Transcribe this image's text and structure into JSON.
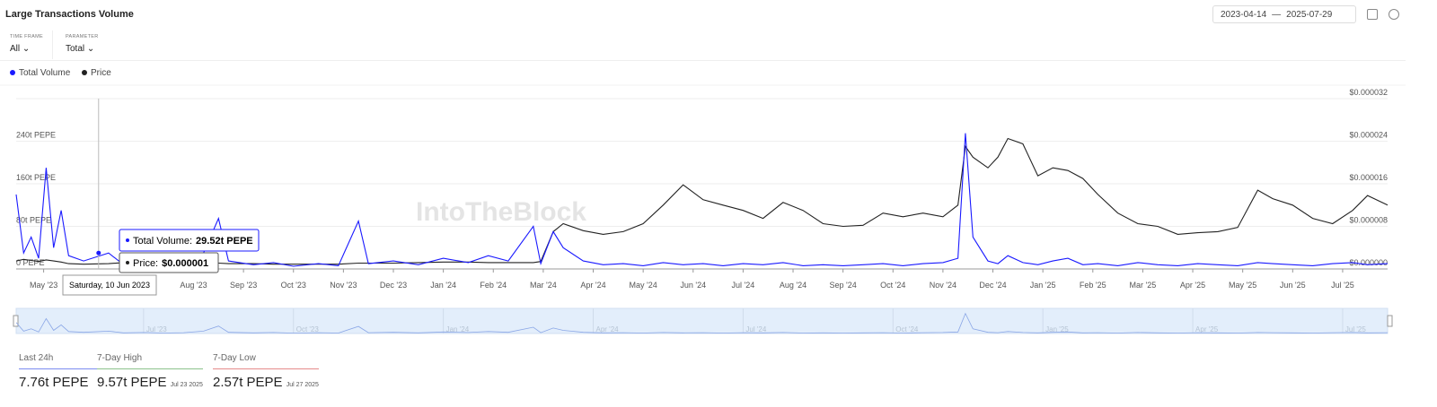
{
  "header": {
    "title": "Large Transactions Volume",
    "date_from": "2023-04-14",
    "date_sep": "—",
    "date_to": "2025-07-29"
  },
  "filters": [
    {
      "label": "TIME FRAME",
      "value": "All"
    },
    {
      "label": "PARAMETER",
      "value": "Total"
    }
  ],
  "watermark": "IntoTheBlock",
  "chart_data": {
    "type": "line",
    "x": [
      -0.55,
      -0.4,
      -0.25,
      -0.1,
      0.05,
      0.2,
      0.35,
      0.5,
      0.8,
      1.3,
      1.6,
      2.0,
      2.4,
      2.8,
      3.2,
      3.5,
      3.7,
      4.2,
      4.6,
      5.0,
      5.5,
      5.9,
      6.3,
      6.5,
      7.0,
      7.5,
      8.0,
      8.5,
      8.9,
      9.3,
      9.8,
      9.95,
      10.2,
      10.4,
      10.8,
      11.2,
      11.6,
      12.0,
      12.4,
      12.8,
      13.2,
      13.6,
      14.0,
      14.4,
      14.8,
      15.2,
      15.6,
      16.0,
      16.4,
      16.8,
      17.2,
      17.6,
      18.0,
      18.3,
      18.45,
      18.6,
      18.9,
      19.1,
      19.3,
      19.6,
      19.9,
      20.2,
      20.5,
      20.8,
      21.1,
      21.5,
      21.9,
      22.3,
      22.7,
      23.1,
      23.5,
      23.9,
      24.3,
      24.6,
      25.0,
      25.4,
      25.8,
      26.2,
      26.5,
      26.9
    ],
    "xlim": [
      -0.55,
      26.9
    ],
    "xticks": [
      {
        "value": 0,
        "label": "May '23"
      },
      {
        "value": 3,
        "label": "Aug '23"
      },
      {
        "value": 4,
        "label": "Sep '23"
      },
      {
        "value": 5,
        "label": "Oct '23"
      },
      {
        "value": 6,
        "label": "Nov '23"
      },
      {
        "value": 7,
        "label": "Dec '23"
      },
      {
        "value": 8,
        "label": "Jan '24"
      },
      {
        "value": 9,
        "label": "Feb '24"
      },
      {
        "value": 10,
        "label": "Mar '24"
      },
      {
        "value": 11,
        "label": "Apr '24"
      },
      {
        "value": 12,
        "label": "May '24"
      },
      {
        "value": 13,
        "label": "Jun '24"
      },
      {
        "value": 14,
        "label": "Jul '24"
      },
      {
        "value": 15,
        "label": "Aug '24"
      },
      {
        "value": 16,
        "label": "Sep '24"
      },
      {
        "value": 17,
        "label": "Oct '24"
      },
      {
        "value": 18,
        "label": "Nov '24"
      },
      {
        "value": 19,
        "label": "Dec '24"
      },
      {
        "value": 20,
        "label": "Jan '25"
      },
      {
        "value": 21,
        "label": "Feb '25"
      },
      {
        "value": 22,
        "label": "Mar '25"
      },
      {
        "value": 23,
        "label": "Apr '25"
      },
      {
        "value": 24,
        "label": "May '25"
      },
      {
        "value": 25,
        "label": "Jun '25"
      },
      {
        "value": 26,
        "label": "Jul '25"
      }
    ],
    "ylim": [
      0,
      320
    ],
    "yticks": [
      {
        "value": 0,
        "label": "0 PEPE"
      },
      {
        "value": 80,
        "label": "80t PEPE"
      },
      {
        "value": 160,
        "label": "160t PEPE"
      },
      {
        "value": 240,
        "label": "240t PEPE"
      }
    ],
    "y2lim": [
      0,
      3.2e-05
    ],
    "y2ticks": [
      {
        "value": 0,
        "label": "$0.000000"
      },
      {
        "value": 8e-06,
        "label": "$0.000008"
      },
      {
        "value": 1.6e-05,
        "label": "$0.000016"
      },
      {
        "value": 2.4e-05,
        "label": "$0.000024"
      },
      {
        "value": 3.2e-05,
        "label": "$0.000032"
      }
    ],
    "navigator_ticks": [
      {
        "value": 2,
        "label": "Jul '23"
      },
      {
        "value": 5,
        "label": "Oct '23"
      },
      {
        "value": 8,
        "label": "Jan '24"
      },
      {
        "value": 11,
        "label": "Apr '24"
      },
      {
        "value": 14,
        "label": "Jul '24"
      },
      {
        "value": 17,
        "label": "Oct '24"
      },
      {
        "value": 20,
        "label": "Jan '25"
      },
      {
        "value": 23,
        "label": "Apr '25"
      },
      {
        "value": 26,
        "label": "Jul '25"
      }
    ],
    "grid": true,
    "series": [
      {
        "name": "Total Volume",
        "color": "#1a1aff",
        "values": [
          140,
          30,
          60,
          20,
          190,
          40,
          110,
          25,
          15,
          30,
          8,
          12,
          6,
          10,
          30,
          95,
          15,
          8,
          12,
          5,
          10,
          6,
          90,
          10,
          15,
          8,
          20,
          12,
          25,
          15,
          80,
          10,
          70,
          40,
          15,
          8,
          10,
          6,
          12,
          8,
          10,
          6,
          10,
          8,
          12,
          6,
          8,
          6,
          8,
          10,
          6,
          10,
          12,
          20,
          255,
          60,
          15,
          10,
          25,
          12,
          8,
          15,
          20,
          8,
          10,
          6,
          12,
          8,
          6,
          10,
          8,
          6,
          12,
          10,
          8,
          6,
          10,
          12,
          8,
          10
        ]
      },
      {
        "name": "Price",
        "color": "#222222",
        "axis": "y2",
        "values": [
          1.5e-06,
          1.8e-06,
          1.6e-06,
          1.4e-06,
          1.7e-06,
          1.5e-06,
          1.3e-06,
          1e-06,
          9e-07,
          1e-06,
          1.2e-06,
          1.3e-06,
          1.4e-06,
          1.3e-06,
          1.2e-06,
          1.1e-06,
          1e-06,
          1e-06,
          9e-07,
          9e-07,
          9e-07,
          9e-07,
          1.1e-06,
          1.1e-06,
          1.1e-06,
          1.2e-06,
          1.3e-06,
          1.3e-06,
          1.2e-06,
          1.2e-06,
          1.2e-06,
          1.4e-06,
          7e-06,
          8.5e-06,
          7.2e-06,
          6.5e-06,
          7e-06,
          8.5e-06,
          1.2e-05,
          1.58e-05,
          1.3e-05,
          1.2e-05,
          1.1e-05,
          9.5e-06,
          1.25e-05,
          1.1e-05,
          8.5e-06,
          8e-06,
          8.2e-06,
          1.05e-05,
          9.8e-06,
          1.05e-05,
          9.8e-06,
          1.2e-05,
          2.3e-05,
          2.1e-05,
          1.9e-05,
          2.1e-05,
          2.45e-05,
          2.35e-05,
          1.75e-05,
          1.9e-05,
          1.85e-05,
          1.7e-05,
          1.4e-05,
          1.05e-05,
          8.5e-06,
          8e-06,
          6.5e-06,
          6.8e-06,
          7e-06,
          7.8e-06,
          1.48e-05,
          1.32e-05,
          1.2e-05,
          9.5e-06,
          8.5e-06,
          1.1e-05,
          1.38e-05,
          1.2e-05
        ]
      }
    ],
    "tooltip": {
      "x": 1.1,
      "date": "Saturday, 10 Jun 2023",
      "rows": [
        {
          "label": "Total Volume:",
          "value": "29.52t PEPE"
        },
        {
          "label": "Price:",
          "value": "$0.000001"
        }
      ]
    }
  },
  "stats": [
    {
      "label": "Last 24h",
      "value": "7.76t PEPE",
      "color": "#7b8cf0"
    },
    {
      "label": "7-Day High",
      "value": "9.57t PEPE",
      "date": "Jul 23 2025",
      "color": "#8cc28c"
    },
    {
      "label": "7-Day Low",
      "value": "2.57t PEPE",
      "date": "Jul 27 2025",
      "color": "#e58a8a"
    }
  ]
}
